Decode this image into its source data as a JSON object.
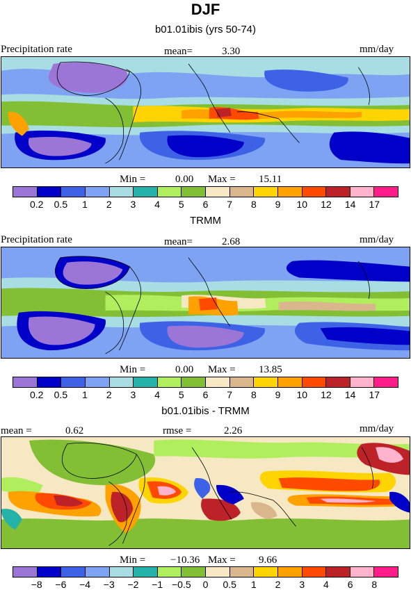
{
  "figure": {
    "title": "DJF"
  },
  "palettes": {
    "precip": [
      "#9b76d6",
      "#0000c8",
      "#3d62e6",
      "#7ea3f2",
      "#a8dde3",
      "#25b2a8",
      "#b0ee5e",
      "#82bf35",
      "#f6e8c2",
      "#d9b68c",
      "#ffd400",
      "#ffa200",
      "#ff4a00",
      "#bd2228",
      "#ffb3cc",
      "#ff1d8a"
    ],
    "diff": [
      "#9b76d6",
      "#0000c8",
      "#3d62e6",
      "#7ea3f2",
      "#a8dde3",
      "#25b2a8",
      "#b0ee5e",
      "#82bf35",
      "#f6e8c2",
      "#d9b68c",
      "#ffd400",
      "#ffa200",
      "#ff4a00",
      "#bd2228",
      "#ffb3cc",
      "#ff1d8a"
    ]
  },
  "panels": [
    {
      "title": "b01.01ibis (yrs 50-74)",
      "left_label": "Precipitation rate",
      "stat_label": "mean=",
      "stat_value": "3.30",
      "units": "mm/day",
      "min_label": "Min =",
      "min_value": "0.00",
      "max_label": "Max =",
      "max_value": "15.11",
      "colorbar_labels": [
        "0.2",
        "0.5",
        "1",
        "2",
        "3",
        "4",
        "5",
        "6",
        "7",
        "8",
        "9",
        "10",
        "12",
        "14",
        "17"
      ]
    },
    {
      "title": "TRMM",
      "left_label": "Precipitation rate",
      "stat_label": "mean=",
      "stat_value": "2.68",
      "units": "mm/day",
      "min_label": "Min =",
      "min_value": "0.00",
      "max_label": "Max =",
      "max_value": "13.85",
      "colorbar_labels": [
        "0.2",
        "0.5",
        "1",
        "2",
        "3",
        "4",
        "5",
        "6",
        "7",
        "8",
        "9",
        "10",
        "12",
        "14",
        "17"
      ]
    },
    {
      "title": "b01.01ibis - TRMM",
      "left_label": "mean =",
      "left_value": "0.62",
      "stat_label": "rmse =",
      "stat_value": "2.26",
      "units": "mm/day",
      "min_label": "Min =",
      "min_value": "−10.36",
      "max_label": "Max =",
      "max_value": "9.66",
      "colorbar_labels": [
        "−8",
        "−6",
        "−4",
        "−3",
        "−2",
        "−1",
        "−0.5",
        "0",
        "0.5",
        "1",
        "2",
        "3",
        "4",
        "6",
        "8"
      ]
    }
  ]
}
